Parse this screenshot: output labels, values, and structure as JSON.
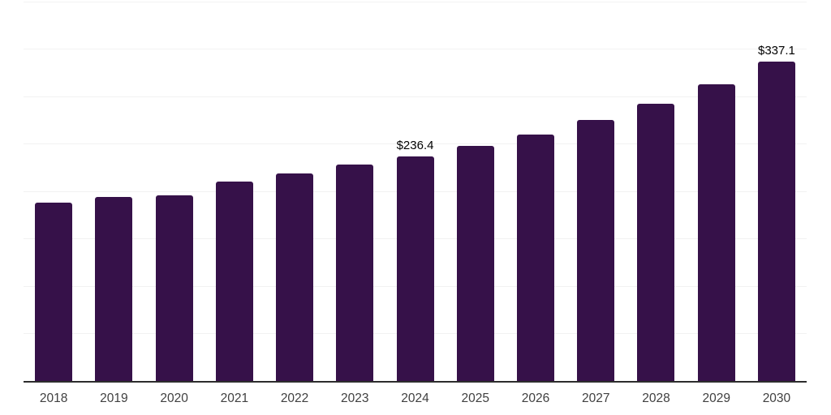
{
  "chart_data": {
    "type": "bar",
    "title": "",
    "xlabel": "",
    "ylabel": "",
    "categories": [
      "2018",
      "2019",
      "2020",
      "2021",
      "2022",
      "2023",
      "2024",
      "2025",
      "2026",
      "2027",
      "2028",
      "2029",
      "2030"
    ],
    "values": [
      188.0,
      194.0,
      195.3,
      210.0,
      218.5,
      227.8,
      236.4,
      247.5,
      260.0,
      275.5,
      292.5,
      312.8,
      337.1
    ],
    "data_labels": [
      "",
      "",
      "",
      "",
      "",
      "",
      "$236.4",
      "",
      "",
      "",
      "",
      "",
      "$337.1"
    ],
    "ylim": [
      0,
      400
    ],
    "grid_step": 50,
    "grid": "horizontal",
    "legend_position": "none",
    "y_tick_labels_visible": false,
    "colors": {
      "bar": "#361149",
      "gridline": "#f2f2f2",
      "axis_line": "#2d2d2d",
      "tick_label": "#404040",
      "data_label": "#000000",
      "background": "#ffffff"
    }
  }
}
